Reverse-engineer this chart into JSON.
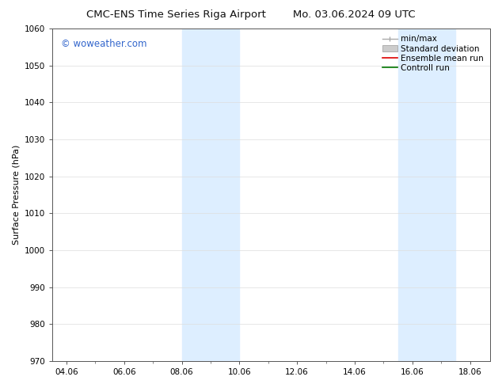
{
  "title_left": "CMC-ENS Time Series Riga Airport",
  "title_right": "Mo. 03.06.2024 09 UTC",
  "xlabel": "",
  "ylabel": "Surface Pressure (hPa)",
  "ylim": [
    970,
    1060
  ],
  "yticks": [
    970,
    980,
    990,
    1000,
    1010,
    1020,
    1030,
    1040,
    1050,
    1060
  ],
  "xlim_start": 3.5,
  "xlim_end": 18.7,
  "xtick_labels": [
    "04.06",
    "06.06",
    "08.06",
    "10.06",
    "12.06",
    "14.06",
    "16.06",
    "18.06"
  ],
  "xtick_positions": [
    4.0,
    6.0,
    8.0,
    10.0,
    12.0,
    14.0,
    16.0,
    18.0
  ],
  "shaded_bands": [
    {
      "x_start": 8.0,
      "x_end": 10.0
    },
    {
      "x_start": 15.5,
      "x_end": 17.5
    }
  ],
  "shade_color": "#ddeeff",
  "watermark_text": "© woweather.com",
  "watermark_color": "#3366cc",
  "legend_items": [
    {
      "label": "min/max",
      "color": "#aaaaaa",
      "style": "minmax"
    },
    {
      "label": "Standard deviation",
      "color": "#cccccc",
      "style": "stddev"
    },
    {
      "label": "Ensemble mean run",
      "color": "#dd0000",
      "style": "line"
    },
    {
      "label": "Controll run",
      "color": "#007700",
      "style": "line"
    }
  ],
  "bg_color": "#ffffff",
  "grid_color": "#dddddd",
  "title_fontsize": 9.5,
  "axis_label_fontsize": 8,
  "tick_fontsize": 7.5,
  "legend_fontsize": 7.5
}
